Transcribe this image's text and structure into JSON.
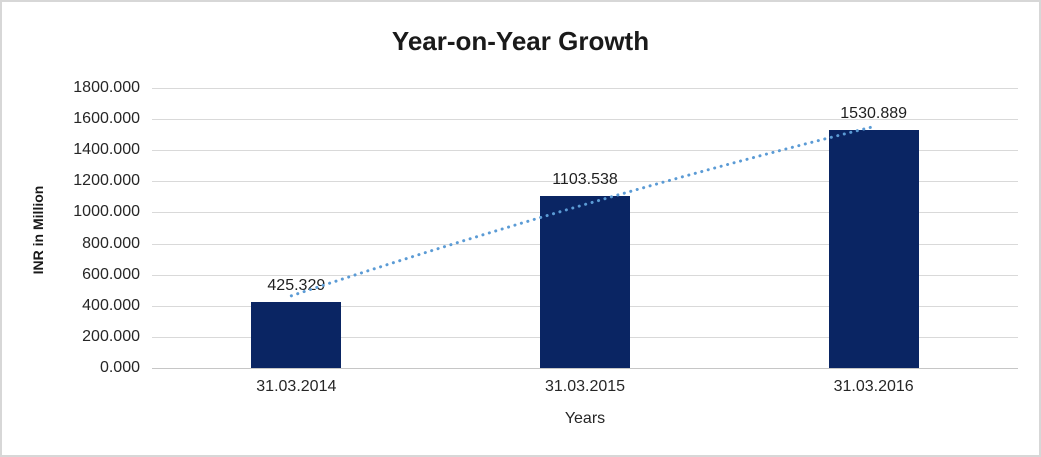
{
  "chart_data": {
    "type": "bar",
    "title": "Year-on-Year Growth",
    "categories": [
      "31.03.2014",
      "31.03.2015",
      "31.03.2016"
    ],
    "values": [
      425.329,
      1103.538,
      1530.889
    ],
    "data_labels": [
      "425.329",
      "1103.538",
      "1530.889"
    ],
    "xlabel": "Years",
    "ylabel": "INR in Million",
    "ylim": [
      0,
      1800
    ],
    "ytick_step": 200,
    "ytick_decimals": 3,
    "grid": true,
    "legend": "none",
    "bar_color": "#0a2563",
    "trendline": {
      "style": "dotted",
      "color": "#5B9BD5"
    },
    "gridline_color": "#d9d9d9"
  }
}
